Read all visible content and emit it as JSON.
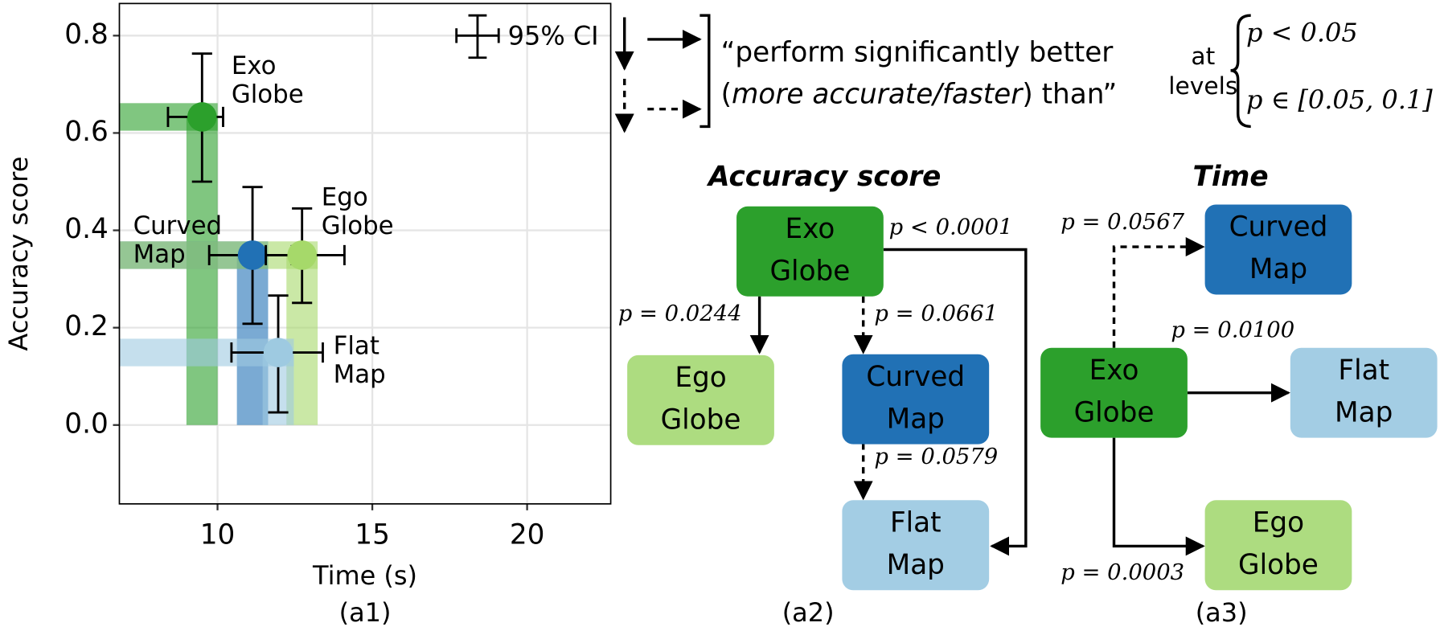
{
  "chart_data": {
    "type": "scatter",
    "x_label": "Time (s)",
    "y_label": "Accuracy score",
    "caption": "(a1)",
    "xlim": [
      6.83,
      22.7
    ],
    "ylim": [
      -0.162,
      0.866
    ],
    "xticks": [
      10,
      15,
      20
    ],
    "yticks": [
      {
        "value": 0,
        "label": "0.0"
      },
      0.2,
      0.4,
      0.6,
      0.8
    ],
    "grid": true,
    "legend_label": "95% CI",
    "series": [
      {
        "label": [
          "Exo",
          "Globe"
        ],
        "color": "#2ca02c",
        "x": 9.5,
        "y": 0.633,
        "x_ci": [
          8.4,
          10.18
        ],
        "y_ci": [
          0.5,
          0.763
        ]
      },
      {
        "label": [
          "Curved",
          "Map"
        ],
        "color": "#2171b5",
        "x": 11.13,
        "y": 0.349,
        "x_ci": [
          9.73,
          12.4
        ],
        "y_ci": [
          0.208,
          0.489
        ]
      },
      {
        "label": [
          "Ego",
          "Globe"
        ],
        "color": "#a6d96a",
        "x": 12.73,
        "y": 0.349,
        "x_ci": [
          11.56,
          14.1
        ],
        "y_ci": [
          0.251,
          0.445
        ]
      },
      {
        "label": [
          "Flat",
          "Map"
        ],
        "color": "#9ecae1",
        "x": 11.96,
        "y": 0.149,
        "x_ci": [
          10.45,
          13.4
        ],
        "y_ci": [
          0.026,
          0.266
        ]
      }
    ]
  },
  "key": {
    "line1": "“perform significantly better",
    "line2": [
      "(",
      "more accurate/faster",
      ") than”"
    ],
    "at_levels": [
      "at",
      "levels"
    ],
    "solid_level": "p < 0.05",
    "dashed_level": "p ∈ [0.05, 0.1]"
  },
  "diagrams": [
    {
      "title": "Accuracy score",
      "caption": "(a2)",
      "nodes": [
        {
          "label": [
            "Exo",
            "Globe"
          ],
          "color": "#2ca02c",
          "text_color": "#ffffff"
        },
        {
          "label": [
            "Ego",
            "Globe"
          ],
          "color": "#addc80",
          "text_color": "#000000"
        },
        {
          "label": [
            "Curved",
            "Map"
          ],
          "color": "#2171b5",
          "text_color": "#ffffff"
        },
        {
          "label": [
            "Flat",
            "Map"
          ],
          "color": "#a3cde4",
          "text_color": "#000000"
        }
      ],
      "edges": [
        {
          "label": "p = 0.0244"
        },
        {
          "label": "p = 0.0661"
        },
        {
          "label": "p < 0.0001"
        },
        {
          "label": "p = 0.0579"
        }
      ]
    },
    {
      "title": "Time",
      "caption": "(a3)",
      "nodes": [
        {
          "label": [
            "Exo",
            "Globe"
          ],
          "color": "#2ca02c",
          "text_color": "#ffffff"
        },
        {
          "label": [
            "Curved",
            "Map"
          ],
          "color": "#2171b5",
          "text_color": "#ffffff"
        },
        {
          "label": [
            "Flat",
            "Map"
          ],
          "color": "#a3cde4",
          "text_color": "#000000"
        },
        {
          "label": [
            "Ego",
            "Globe"
          ],
          "color": "#addc80",
          "text_color": "#000000"
        }
      ],
      "edges": [
        {
          "label": "p = 0.0567"
        },
        {
          "label": "p = 0.0100"
        },
        {
          "label": "p = 0.0003"
        }
      ]
    }
  ]
}
